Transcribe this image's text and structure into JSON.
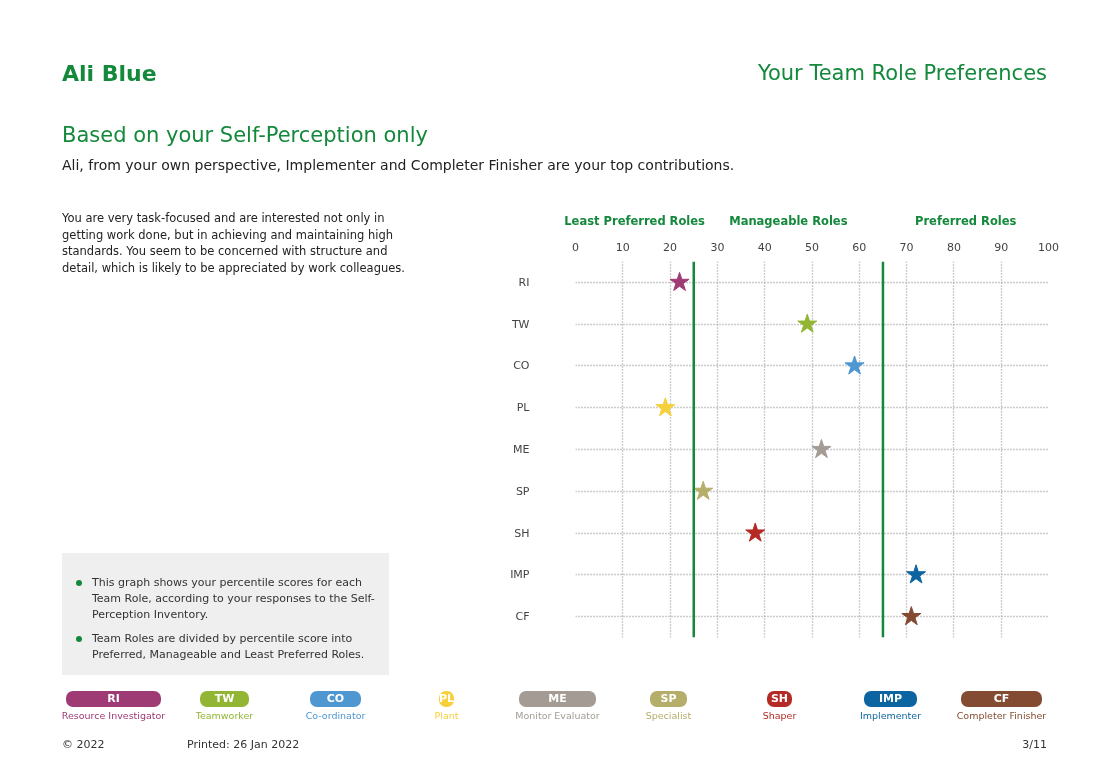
{
  "chart_data": {
    "type": "scatter",
    "title": "Your Team Role Preferences",
    "subtitle": "Based on your Self-Perception only",
    "orientation": "horizontal",
    "categories": [
      "RI",
      "TW",
      "CO",
      "PL",
      "ME",
      "SP",
      "SH",
      "IMP",
      "CF"
    ],
    "series": [
      {
        "name": "Resource Investigator",
        "color": "#9e3a74",
        "values": [
          22,
          null,
          null,
          null,
          null,
          null,
          null,
          null,
          null
        ]
      },
      {
        "name": "Teamworker",
        "color": "#93b534",
        "values": [
          null,
          49,
          null,
          null,
          null,
          null,
          null,
          null,
          null
        ]
      },
      {
        "name": "Co-ordinator",
        "color": "#4e97d1",
        "values": [
          null,
          null,
          59,
          null,
          null,
          null,
          null,
          null,
          null
        ]
      },
      {
        "name": "Plant",
        "color": "#f5d03a",
        "values": [
          null,
          null,
          null,
          19,
          null,
          null,
          null,
          null,
          null
        ]
      },
      {
        "name": "Monitor Evaluator",
        "color": "#a49c94",
        "values": [
          null,
          null,
          null,
          null,
          52,
          null,
          null,
          null,
          null
        ]
      },
      {
        "name": "Specialist",
        "color": "#b5ad6a",
        "values": [
          null,
          null,
          null,
          null,
          null,
          27,
          null,
          null,
          null
        ]
      },
      {
        "name": "Shaper",
        "color": "#b52a24",
        "values": [
          null,
          null,
          null,
          null,
          null,
          null,
          38,
          null,
          null
        ]
      },
      {
        "name": "Implementer",
        "color": "#0c65a0",
        "values": [
          null,
          null,
          null,
          null,
          null,
          null,
          null,
          72,
          null
        ]
      },
      {
        "name": "Completer Finisher",
        "color": "#844b33",
        "values": [
          null,
          null,
          null,
          null,
          null,
          null,
          null,
          null,
          71
        ]
      }
    ],
    "xlim": [
      0,
      100
    ],
    "xticks": [
      0,
      10,
      20,
      30,
      40,
      50,
      60,
      70,
      80,
      90,
      100
    ],
    "ref_lines": [
      {
        "axis": "x",
        "value": 25,
        "color": "#14893c"
      },
      {
        "axis": "x",
        "value": 65,
        "color": "#14893c"
      }
    ],
    "grid": true,
    "marker": "star",
    "legend": "bottom",
    "annotations": [
      "Least Preferred Roles",
      "Manageable Roles",
      "Preferred Roles",
      "Ali Blue",
      "Ali, from your own perspective, Implementer and Completer Finisher are your top contributions.",
      "You are very task-focused and are interested not only in getting work done, but in achieving and maintaining high standards. You seem to be concerned with structure and detail, which is likely to be appreciated by work colleagues.",
      "This graph shows your percentile scores for each Team Role, according to your responses to the Self-Perception Inventory.",
      "Team Roles are divided by percentile score into Preferred, Manageable and Least Preferred Roles.",
      "© 2022",
      "Printed: 26 Jan 2022",
      "3/11"
    ]
  }
}
